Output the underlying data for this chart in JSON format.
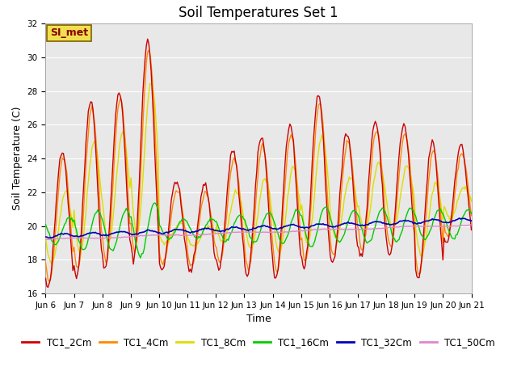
{
  "title": "Soil Temperatures Set 1",
  "xlabel": "Time",
  "ylabel": "Soil Temperature (C)",
  "ylim": [
    16,
    32
  ],
  "x_tick_labels": [
    "Jun 6",
    "Jun 7",
    "Jun 8",
    "Jun 9",
    "Jun 10",
    "Jun 11",
    "Jun 12",
    "Jun 13",
    "Jun 14",
    "Jun 15",
    "Jun 16",
    "Jun 17",
    "Jun 18",
    "Jun 19",
    "Jun 20",
    "Jun 21"
  ],
  "annotation_text": "SI_met",
  "series": {
    "TC1_2Cm": {
      "color": "#cc0000",
      "linewidth": 1.0
    },
    "TC1_4Cm": {
      "color": "#ff8800",
      "linewidth": 1.0
    },
    "TC1_8Cm": {
      "color": "#dddd00",
      "linewidth": 1.0
    },
    "TC1_16Cm": {
      "color": "#00cc00",
      "linewidth": 1.0
    },
    "TC1_32Cm": {
      "color": "#0000bb",
      "linewidth": 1.2
    },
    "TC1_50Cm": {
      "color": "#dd88cc",
      "linewidth": 1.0
    }
  },
  "background_color": "#e8e8e8",
  "grid_color": "#ffffff",
  "title_fontsize": 12,
  "axis_fontsize": 9,
  "tick_fontsize": 7.5,
  "legend_fontsize": 8.5,
  "day_peaks_2cm": [
    24.5,
    27.5,
    28.0,
    31.0,
    22.7,
    22.5,
    24.5,
    25.3,
    26.0,
    27.8,
    25.5,
    26.2,
    26.0,
    25.0,
    24.8
  ],
  "day_troughs_2cm": [
    16.3,
    17.0,
    17.5,
    18.0,
    17.4,
    17.3,
    17.5,
    17.1,
    16.9,
    17.5,
    17.8,
    18.2,
    18.3,
    16.8,
    19.0
  ]
}
